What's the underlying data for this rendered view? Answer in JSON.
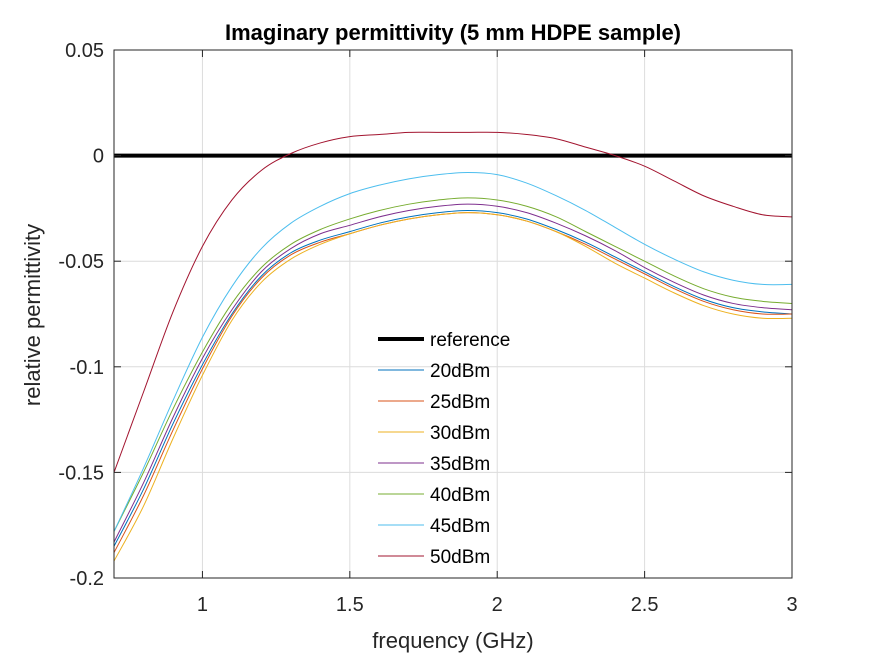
{
  "chart_data": {
    "type": "line",
    "title": "Imaginary permittivity (5 mm HDPE sample)",
    "xlabel": "frequency (GHz)",
    "ylabel": "relative permittivity",
    "xlim": [
      0.7,
      3.0
    ],
    "ylim": [
      -0.2,
      0.05
    ],
    "xticks": [
      1,
      1.5,
      2,
      2.5,
      3
    ],
    "xtick_labels": [
      "1",
      "1.5",
      "2",
      "2.5",
      "3"
    ],
    "yticks": [
      -0.2,
      -0.15,
      -0.1,
      -0.05,
      0,
      0.05
    ],
    "ytick_labels": [
      "-0.2",
      "-0.15",
      "-0.1",
      "-0.05",
      "0",
      "0.05"
    ],
    "grid": true,
    "legend_position": "center",
    "x": [
      0.7,
      0.8,
      0.9,
      1.0,
      1.1,
      1.2,
      1.3,
      1.4,
      1.5,
      1.6,
      1.7,
      1.8,
      1.9,
      2.0,
      2.1,
      2.2,
      2.3,
      2.4,
      2.5,
      2.6,
      2.7,
      2.8,
      2.9,
      3.0
    ],
    "series": [
      {
        "name": "reference",
        "color": "#000000",
        "width": 4,
        "values": [
          0,
          0,
          0,
          0,
          0,
          0,
          0,
          0,
          0,
          0,
          0,
          0,
          0,
          0,
          0,
          0,
          0,
          0,
          0,
          0,
          0,
          0,
          0,
          0
        ]
      },
      {
        "name": "20dBm",
        "color": "#0072BD",
        "width": 1,
        "values": [
          -0.185,
          -0.158,
          -0.127,
          -0.099,
          -0.075,
          -0.057,
          -0.046,
          -0.04,
          -0.036,
          -0.032,
          -0.029,
          -0.027,
          -0.026,
          -0.027,
          -0.03,
          -0.035,
          -0.041,
          -0.048,
          -0.055,
          -0.062,
          -0.068,
          -0.072,
          -0.074,
          -0.075
        ]
      },
      {
        "name": "25dBm",
        "color": "#D95319",
        "width": 1,
        "values": [
          -0.188,
          -0.161,
          -0.13,
          -0.101,
          -0.076,
          -0.058,
          -0.047,
          -0.041,
          -0.037,
          -0.033,
          -0.03,
          -0.028,
          -0.027,
          -0.028,
          -0.031,
          -0.036,
          -0.042,
          -0.049,
          -0.056,
          -0.063,
          -0.069,
          -0.073,
          -0.075,
          -0.075
        ]
      },
      {
        "name": "30dBm",
        "color": "#EDB120",
        "width": 1,
        "values": [
          -0.192,
          -0.166,
          -0.134,
          -0.104,
          -0.078,
          -0.06,
          -0.049,
          -0.042,
          -0.037,
          -0.033,
          -0.03,
          -0.028,
          -0.027,
          -0.028,
          -0.031,
          -0.036,
          -0.043,
          -0.051,
          -0.058,
          -0.065,
          -0.071,
          -0.075,
          -0.077,
          -0.077
        ]
      },
      {
        "name": "35dBm",
        "color": "#7E2F8E",
        "width": 1,
        "values": [
          -0.183,
          -0.155,
          -0.124,
          -0.096,
          -0.073,
          -0.055,
          -0.044,
          -0.037,
          -0.033,
          -0.029,
          -0.026,
          -0.024,
          -0.023,
          -0.024,
          -0.027,
          -0.032,
          -0.038,
          -0.045,
          -0.053,
          -0.06,
          -0.066,
          -0.07,
          -0.072,
          -0.073
        ]
      },
      {
        "name": "40dBm",
        "color": "#77AC30",
        "width": 1,
        "values": [
          -0.178,
          -0.15,
          -0.12,
          -0.093,
          -0.07,
          -0.053,
          -0.042,
          -0.035,
          -0.03,
          -0.026,
          -0.023,
          -0.021,
          -0.02,
          -0.021,
          -0.024,
          -0.029,
          -0.036,
          -0.043,
          -0.05,
          -0.057,
          -0.063,
          -0.067,
          -0.069,
          -0.07
        ]
      },
      {
        "name": "45dBm",
        "color": "#4DBEEE",
        "width": 1,
        "values": [
          -0.178,
          -0.148,
          -0.116,
          -0.086,
          -0.062,
          -0.044,
          -0.032,
          -0.024,
          -0.018,
          -0.014,
          -0.011,
          -0.009,
          -0.008,
          -0.009,
          -0.013,
          -0.019,
          -0.026,
          -0.034,
          -0.042,
          -0.049,
          -0.055,
          -0.059,
          -0.061,
          -0.061
        ]
      },
      {
        "name": "50dBm",
        "color": "#A2142F",
        "width": 1,
        "values": [
          -0.15,
          -0.112,
          -0.074,
          -0.043,
          -0.021,
          -0.007,
          0.001,
          0.006,
          0.009,
          0.01,
          0.011,
          0.011,
          0.011,
          0.011,
          0.01,
          0.008,
          0.004,
          0.0,
          -0.005,
          -0.012,
          -0.019,
          -0.024,
          -0.028,
          -0.029
        ]
      }
    ]
  }
}
